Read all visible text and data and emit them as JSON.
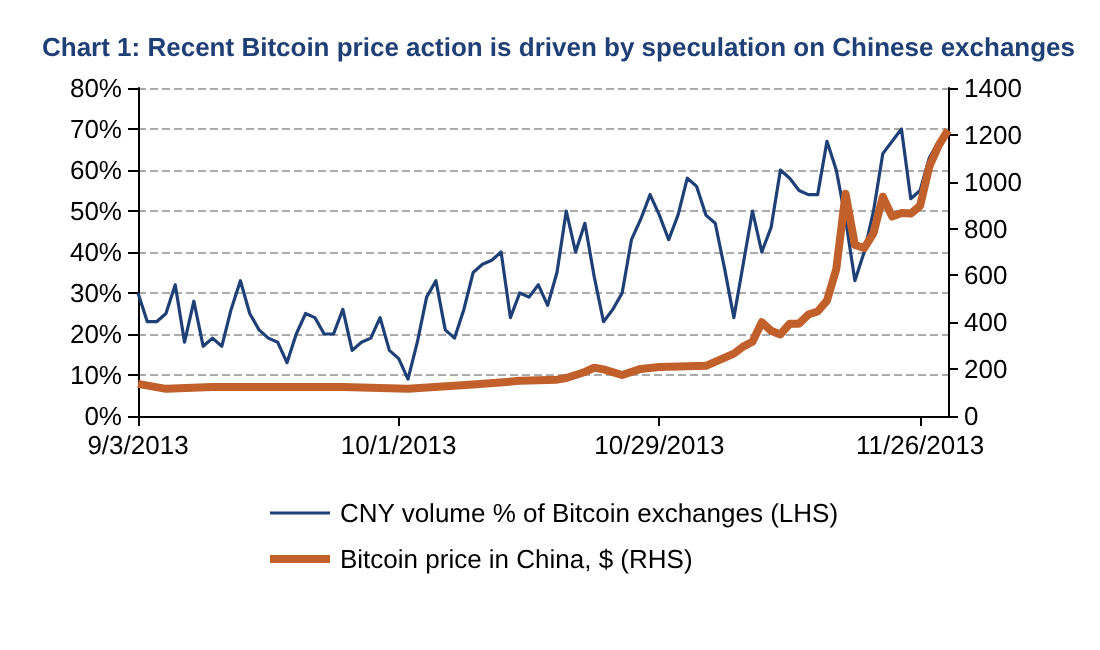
{
  "chart_data": {
    "type": "line",
    "title": "Chart 1: Recent Bitcoin price action is driven by speculation on Chinese exchanges",
    "xlim": [
      "2013-09-03",
      "2013-11-29"
    ],
    "xticks": [
      {
        "value": "2013-09-03",
        "label": "9/3/2013"
      },
      {
        "value": "2013-10-01",
        "label": "10/1/2013"
      },
      {
        "value": "2013-10-29",
        "label": "10/29/2013"
      },
      {
        "value": "2013-11-26",
        "label": "11/26/2013"
      }
    ],
    "ylim": [
      0,
      80
    ],
    "yticks": [
      {
        "value": 0,
        "label": "0%"
      },
      {
        "value": 10,
        "label": "10%"
      },
      {
        "value": 20,
        "label": "20%"
      },
      {
        "value": 30,
        "label": "30%"
      },
      {
        "value": 40,
        "label": "40%"
      },
      {
        "value": 50,
        "label": "50%"
      },
      {
        "value": 60,
        "label": "60%"
      },
      {
        "value": 70,
        "label": "70%"
      },
      {
        "value": 80,
        "label": "80%"
      }
    ],
    "y2lim": [
      0,
      1400
    ],
    "y2ticks": [
      0,
      200,
      400,
      600,
      800,
      1000,
      1200,
      1400
    ],
    "grid": "y",
    "legend": "bottom",
    "marker": "none",
    "line_style": "solid",
    "series": [
      {
        "name": "CNY volume % of Bitcoin exchanges (LHS)",
        "color": "#1f3f77",
        "x": [
          "2013-09-03",
          "2013-09-04",
          "2013-09-05",
          "2013-09-06",
          "2013-09-07",
          "2013-09-08",
          "2013-09-09",
          "2013-09-10",
          "2013-09-11",
          "2013-09-12",
          "2013-09-13",
          "2013-09-14",
          "2013-09-15",
          "2013-09-16",
          "2013-09-17",
          "2013-09-18",
          "2013-09-19",
          "2013-09-20",
          "2013-09-21",
          "2013-09-22",
          "2013-09-23",
          "2013-09-24",
          "2013-09-25",
          "2013-09-26",
          "2013-09-27",
          "2013-09-28",
          "2013-09-29",
          "2013-09-30",
          "2013-10-01",
          "2013-10-02",
          "2013-10-03",
          "2013-10-04",
          "2013-10-05",
          "2013-10-06",
          "2013-10-07",
          "2013-10-08",
          "2013-10-09",
          "2013-10-10",
          "2013-10-11",
          "2013-10-12",
          "2013-10-13",
          "2013-10-14",
          "2013-10-15",
          "2013-10-16",
          "2013-10-17",
          "2013-10-18",
          "2013-10-19",
          "2013-10-20",
          "2013-10-21",
          "2013-10-22",
          "2013-10-23",
          "2013-10-24",
          "2013-10-25",
          "2013-10-26",
          "2013-10-27",
          "2013-10-28",
          "2013-10-29",
          "2013-10-30",
          "2013-10-31",
          "2013-11-01",
          "2013-11-02",
          "2013-11-03",
          "2013-11-04",
          "2013-11-05",
          "2013-11-06",
          "2013-11-07",
          "2013-11-08",
          "2013-11-09",
          "2013-11-10",
          "2013-11-11",
          "2013-11-12",
          "2013-11-13",
          "2013-11-14",
          "2013-11-15",
          "2013-11-16",
          "2013-11-17",
          "2013-11-18",
          "2013-11-19",
          "2013-11-20",
          "2013-11-21",
          "2013-11-22",
          "2013-11-23",
          "2013-11-24",
          "2013-11-25",
          "2013-11-26",
          "2013-11-27",
          "2013-11-28"
        ],
        "values": [
          30,
          23,
          23,
          25,
          32,
          18,
          28,
          17,
          19,
          17,
          26,
          33,
          25,
          21,
          19,
          18,
          13,
          20,
          25,
          24,
          20,
          20,
          26,
          16,
          18,
          19,
          24,
          16,
          14,
          9,
          18,
          29,
          33,
          21,
          19,
          26,
          35,
          37,
          38,
          40,
          24,
          30,
          29,
          32,
          27,
          35,
          50,
          40,
          47,
          34,
          23,
          26,
          30,
          43,
          48,
          54,
          49,
          43,
          49,
          58,
          56,
          49,
          47,
          36,
          24,
          37,
          50,
          40,
          46,
          60,
          58,
          55,
          54,
          54,
          67,
          60,
          48,
          33,
          40,
          50,
          64,
          67,
          70,
          53,
          55,
          63,
          67
        ]
      },
      {
        "name": "Bitcoin price in China, $ (RHS)",
        "color": "#c1602a",
        "axis": "y2",
        "x": [
          "2013-09-03",
          "2013-09-06",
          "2013-09-11",
          "2013-09-25",
          "2013-10-02",
          "2013-10-09",
          "2013-10-14",
          "2013-10-18",
          "2013-10-19",
          "2013-10-21",
          "2013-10-22",
          "2013-10-23",
          "2013-10-25",
          "2013-10-27",
          "2013-10-29",
          "2013-11-03",
          "2013-11-06",
          "2013-11-07",
          "2013-11-08",
          "2013-11-09",
          "2013-11-10",
          "2013-11-11",
          "2013-11-12",
          "2013-11-13",
          "2013-11-14",
          "2013-11-15",
          "2013-11-16",
          "2013-11-17",
          "2013-11-18",
          "2013-11-19",
          "2013-11-20",
          "2013-11-21",
          "2013-11-22",
          "2013-11-23",
          "2013-11-24",
          "2013-11-25",
          "2013-11-26",
          "2013-11-27",
          "2013-11-28",
          "2013-11-29"
        ],
        "values": [
          137,
          116,
          124,
          124,
          116,
          134,
          150,
          155,
          162,
          188,
          206,
          199,
          175,
          201,
          209,
          214,
          266,
          296,
          317,
          400,
          364,
          348,
          394,
          394,
          433,
          446,
          492,
          627,
          949,
          730,
          717,
          781,
          936,
          851,
          866,
          864,
          897,
          1065,
          1155,
          1220
        ]
      }
    ]
  }
}
